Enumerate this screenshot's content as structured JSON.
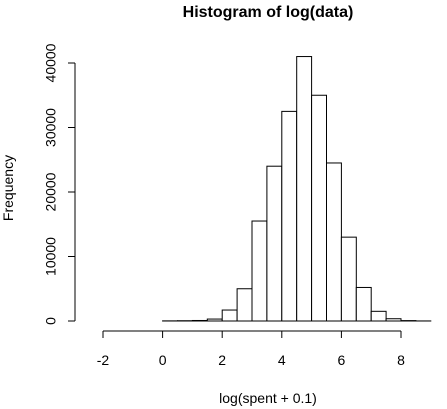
{
  "chart_data": {
    "type": "bar",
    "title": "Histogram of log(data)",
    "xlabel": "log(spent + 0.1)",
    "ylabel": "Frequency",
    "xlim": [
      -2.5,
      9.5
    ],
    "ylim": [
      0,
      43000
    ],
    "x_ticks": [
      -2,
      0,
      2,
      4,
      6,
      8
    ],
    "x_tick_labels": [
      "-2",
      "0",
      "2",
      "4",
      "6",
      "8"
    ],
    "y_ticks": [
      0,
      10000,
      20000,
      30000,
      40000
    ],
    "y_tick_labels": [
      "0",
      "10000",
      "20000",
      "30000",
      "40000"
    ],
    "bin_width": 0.5,
    "bins": [
      {
        "start": -2.5,
        "end": -2.0,
        "value": 0
      },
      {
        "start": -2.0,
        "end": -1.5,
        "value": 0
      },
      {
        "start": -1.5,
        "end": -1.0,
        "value": 0
      },
      {
        "start": -1.0,
        "end": -0.5,
        "value": 0
      },
      {
        "start": -0.5,
        "end": 0.0,
        "value": 0
      },
      {
        "start": 0.0,
        "end": 0.5,
        "value": 20
      },
      {
        "start": 0.5,
        "end": 1.0,
        "value": 40
      },
      {
        "start": 1.0,
        "end": 1.5,
        "value": 80
      },
      {
        "start": 1.5,
        "end": 2.0,
        "value": 300
      },
      {
        "start": 2.0,
        "end": 2.5,
        "value": 1700
      },
      {
        "start": 2.5,
        "end": 3.0,
        "value": 5000
      },
      {
        "start": 3.0,
        "end": 3.5,
        "value": 15500
      },
      {
        "start": 3.5,
        "end": 4.0,
        "value": 24000
      },
      {
        "start": 4.0,
        "end": 4.5,
        "value": 32500
      },
      {
        "start": 4.5,
        "end": 5.0,
        "value": 41000
      },
      {
        "start": 5.0,
        "end": 5.5,
        "value": 35000
      },
      {
        "start": 5.5,
        "end": 6.0,
        "value": 24500
      },
      {
        "start": 6.0,
        "end": 6.5,
        "value": 13000
      },
      {
        "start": 6.5,
        "end": 7.0,
        "value": 5200
      },
      {
        "start": 7.0,
        "end": 7.5,
        "value": 1500
      },
      {
        "start": 7.5,
        "end": 8.0,
        "value": 350
      },
      {
        "start": 8.0,
        "end": 8.5,
        "value": 60
      },
      {
        "start": 8.5,
        "end": 9.0,
        "value": 10
      },
      {
        "start": 9.0,
        "end": 9.5,
        "value": 0
      }
    ],
    "grid": false,
    "legend": "none"
  }
}
